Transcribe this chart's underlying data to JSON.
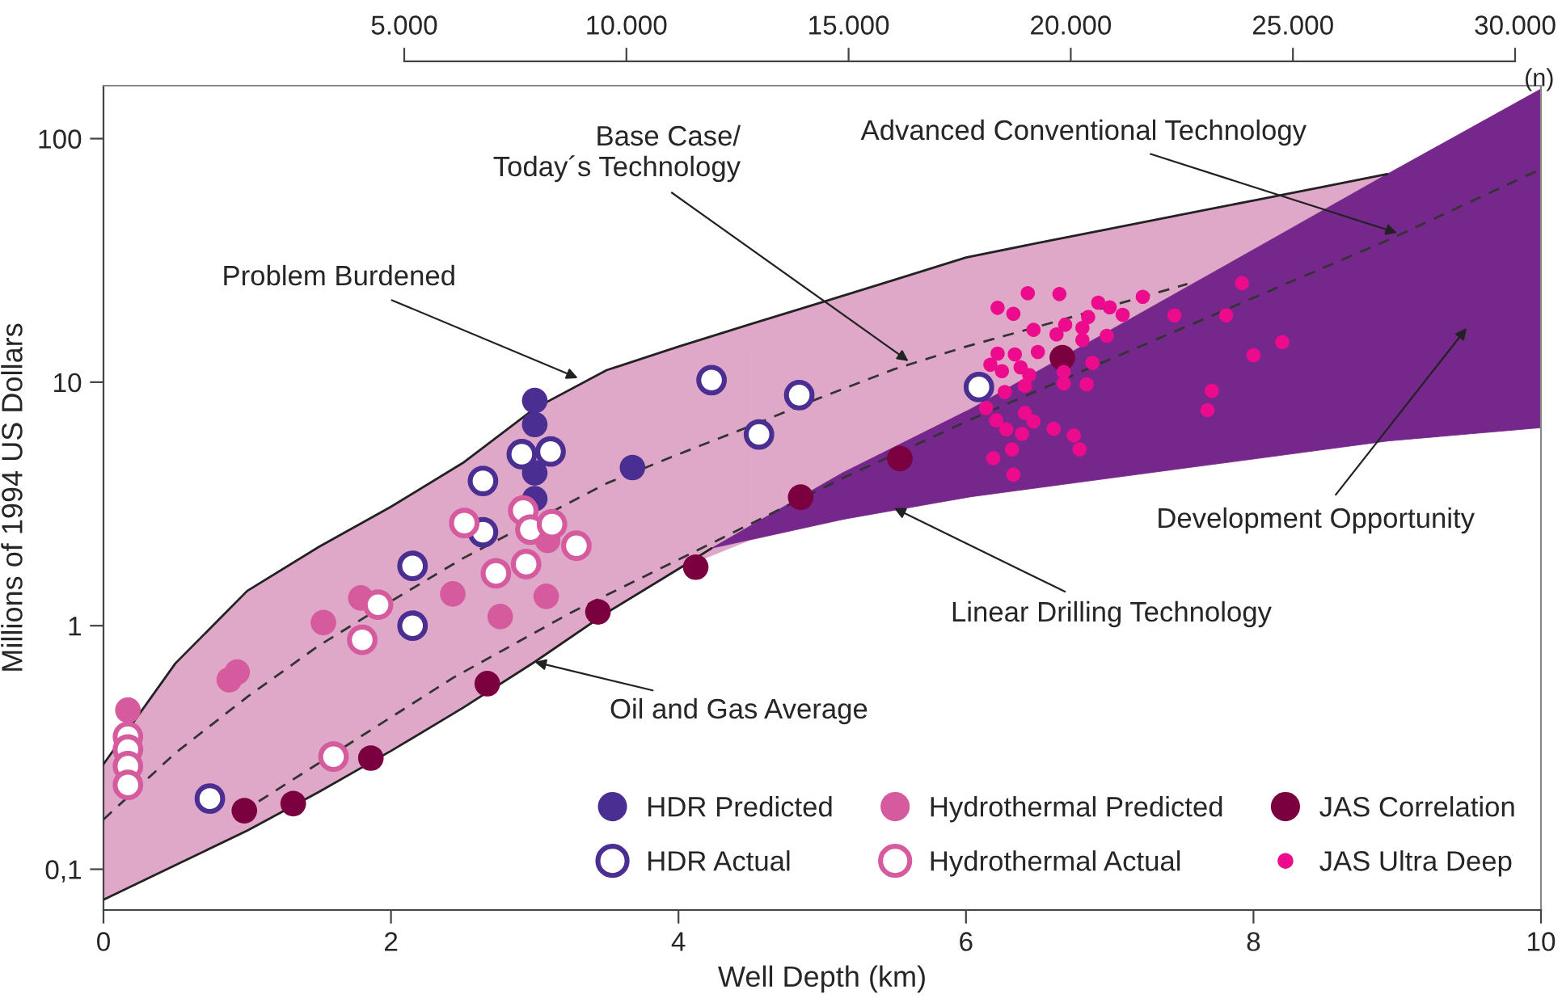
{
  "chart_data": {
    "type": "scatter",
    "xlabel": "Well Depth (km)",
    "ylabel": "Millions of 1994 US Dollars",
    "x2label": "(n)",
    "log": "y",
    "xlim": [
      0,
      10
    ],
    "xticks": [
      0,
      2,
      4,
      6,
      8,
      10
    ],
    "ylim": [
      0.068,
      165
    ],
    "yticks": [
      {
        "value": 0.1,
        "label": "0,1"
      },
      1,
      10,
      100
    ],
    "x2lim": [
      5000,
      30000
    ],
    "x2ticks": [
      {
        "value": 5000,
        "label": "5.000"
      },
      {
        "value": 10000,
        "label": "10.000"
      },
      {
        "value": 15000,
        "label": "15.000"
      },
      {
        "value": 20000,
        "label": "20.000"
      },
      {
        "value": 25000,
        "label": "25.000"
      },
      {
        "value": 30000,
        "label": "30.000"
      }
    ],
    "grid": false,
    "legend": "bottom right",
    "marker": "circle",
    "series": [
      {
        "type": "line",
        "color": "#333333",
        "colors": [
          "#dfa8c9",
          "#dfa8c9",
          "#dfa8c9",
          "#dfa8c9",
          "#dfa8c9",
          "#dfa8c9",
          "#dfa8c9",
          "#dfa8c9",
          "#dfa8c9",
          "#dfa8c9",
          "#dfa8c9",
          "#dfa8c9",
          "#dfa8c9",
          "#dfa8c9",
          "#dfa8c9",
          "#dfa8c9",
          "#dfa8c9",
          "#dfa8c9",
          "#dfa8c9"
        ],
        "line_style": "dashed",
        "marker": "none",
        "x": [
          0,
          0.5,
          1,
          1.5,
          2,
          2.5,
          3,
          3.5,
          4,
          4.5,
          5,
          5.5,
          6,
          6.5,
          7,
          7.54,
          8,
          8.5,
          8.93
        ],
        "values": [
          0.16,
          0.3,
          0.51,
          0.83,
          1.26,
          1.89,
          2.7,
          3.84,
          5.06,
          6.6,
          8.7,
          11.3,
          14.0,
          16.9,
          20.5,
          25.3,
          null,
          null,
          null
        ],
        "lower": [
          0.075,
          0.104,
          0.144,
          0.208,
          0.306,
          0.46,
          0.71,
          1.13,
          1.71,
          2.25,
          2.62,
          3.04,
          3.36,
          3.68,
          4.03,
          4.45,
          4.83,
          5.3,
          5.73
        ],
        "upper": [
          0.27,
          0.7,
          1.39,
          2.11,
          3.08,
          4.66,
          7.8,
          11.2,
          14,
          17.3,
          21.3,
          26.3,
          32.5,
          37.3,
          42.6,
          49.3,
          55.7,
          63.7,
          71.5
        ]
      },
      {
        "type": "line",
        "color": "#333333",
        "colors": [
          "#76278c",
          "#76278c",
          "#76278c",
          "#76278c",
          "#76278c",
          "#76278c",
          "#76278c",
          "#76278c",
          "#76278c",
          "#76278c"
        ],
        "line_style": "dashed",
        "marker": "none",
        "x": [
          1.08,
          2.43,
          3.25,
          4.23,
          5.14,
          6.04,
          7,
          8,
          8.93,
          10
        ],
        "values": [
          0.19,
          0.61,
          1.13,
          2.18,
          4.03,
          7.05,
          12.4,
          22.2,
          38.2,
          75
        ],
        "lower": [
          null,
          null,
          null,
          2.08,
          2.73,
          3.39,
          4.04,
          4.84,
          5.73,
          6.5
        ],
        "upper": [
          null,
          null,
          null,
          2.08,
          4.24,
          7.8,
          16.3,
          35,
          71.5,
          160
        ]
      },
      {
        "type": "line",
        "color": "#222222",
        "line_style": "solid",
        "marker": "none",
        "x": [
          0,
          0.5,
          1,
          1.5,
          2,
          2.5,
          3,
          3.5,
          4,
          4.5,
          5,
          5.5,
          6,
          6.5,
          7,
          7.54,
          8,
          8.5,
          8.93
        ],
        "values": [
          0.27,
          0.7,
          1.39,
          2.11,
          3.08,
          4.66,
          7.8,
          11.2,
          14,
          17.3,
          21.3,
          26.3,
          32.5,
          37.3,
          42.6,
          49.3,
          55.7,
          63.7,
          71.5
        ]
      },
      {
        "type": "line",
        "color": "#222222",
        "line_style": "solid",
        "marker": "none",
        "x": [
          0,
          0.5,
          1,
          1.5,
          2,
          2.5,
          3,
          3.5,
          4,
          4.23
        ],
        "values": [
          0.075,
          0.104,
          0.144,
          0.208,
          0.306,
          0.46,
          0.71,
          1.13,
          1.71,
          2.08
        ]
      },
      {
        "name": "HDR Predicted",
        "color": "#4b2e91",
        "x": [
          3.0,
          3.0,
          3.0,
          3.0,
          3.68
        ],
        "values": [
          8.4,
          6.7,
          4.24,
          3.32,
          4.46
        ]
      },
      {
        "name": "HDR Actual",
        "color": "#4b2e91",
        "x": [
          0.74,
          2.15,
          2.15,
          2.64,
          2.64,
          2.91,
          3.11,
          4.23,
          4.56,
          4.84,
          6.09
        ],
        "values": [
          0.195,
          1.76,
          1.0,
          3.93,
          2.42,
          5.06,
          5.19,
          10.2,
          6.1,
          8.85,
          9.55
        ]
      },
      {
        "name": "Hydrothermal Predicted",
        "color": "#d65a9e",
        "x": [
          0.17,
          0.875,
          0.93,
          1.53,
          1.79,
          2.43,
          2.76,
          3.09,
          3.08
        ],
        "values": [
          0.45,
          0.6,
          0.645,
          1.03,
          1.3,
          1.35,
          1.09,
          2.24,
          1.32
        ]
      },
      {
        "name": "Hydrothermal Actual",
        "color": "#d65a9e",
        "x": [
          0.17,
          0.17,
          0.17,
          0.17,
          1.6,
          1.8,
          1.91,
          2.51,
          2.73,
          2.92,
          2.94,
          2.97,
          3.12,
          3.29
        ],
        "values": [
          0.35,
          0.31,
          0.265,
          0.222,
          0.29,
          0.875,
          1.22,
          2.64,
          1.64,
          2.97,
          1.79,
          2.48,
          2.61,
          2.13
        ]
      },
      {
        "name": "JAS Correlation",
        "color": "#7a0040",
        "x": [
          0.98,
          1.32,
          1.86,
          2.67,
          3.44,
          4.12,
          4.85,
          5.54,
          6.67
        ],
        "values": [
          0.174,
          0.186,
          0.286,
          0.578,
          1.14,
          1.74,
          3.37,
          4.86,
          12.6
        ]
      },
      {
        "name": "JAS Ultra Deep",
        "color": "#ec0b8d",
        "x": [
          6.43,
          6.65,
          6.22,
          6.33,
          6.92,
          7.0,
          7.09,
          7.23,
          7.92,
          7.45,
          7.81,
          6.47,
          6.69,
          6.63,
          6.81,
          6.85,
          6.81,
          6.98,
          6.22,
          6.34,
          6.5,
          6.17,
          6.25,
          6.38,
          6.44,
          6.41,
          6.27,
          6.68,
          6.68,
          6.84,
          6.88,
          6.14,
          6.21,
          6.41,
          6.47,
          6.28,
          6.39,
          6.61,
          6.75,
          6.79,
          6.32,
          6.19,
          6.33,
          8.2,
          8.0,
          7.71,
          7.68
        ],
        "values": [
          23.2,
          23.0,
          20.2,
          19.1,
          21.2,
          20.3,
          18.9,
          22.4,
          25.5,
          18.8,
          18.8,
          16.4,
          17.2,
          15.7,
          16.7,
          18.5,
          14.9,
          15.5,
          13.1,
          13.0,
          13.3,
          11.8,
          11.1,
          11.5,
          10.7,
          9.66,
          9.12,
          11.0,
          9.89,
          9.8,
          12.0,
          7.83,
          6.97,
          7.48,
          6.9,
          6.4,
          6.14,
          6.43,
          6.04,
          5.3,
          5.3,
          4.88,
          4.17,
          14.6,
          12.9,
          9.22,
          7.68
        ]
      }
    ],
    "annotations": [
      {
        "text": "Problem Burdened",
        "x": 3.3,
        "y": 10.4
      },
      {
        "text": "Base Case/\nToday´s Technology",
        "x": 5.6,
        "y": 12.2
      },
      {
        "text": "Advanced Conventional Technology",
        "x": 9.0,
        "y": 41
      },
      "Development Opportunity",
      {
        "text": "Linear Drilling Technology",
        "x": 5.5,
        "y": 3.04
      },
      {
        "text": "Oil and Gas Average",
        "x": 3.0,
        "y": 0.71
      }
    ]
  }
}
